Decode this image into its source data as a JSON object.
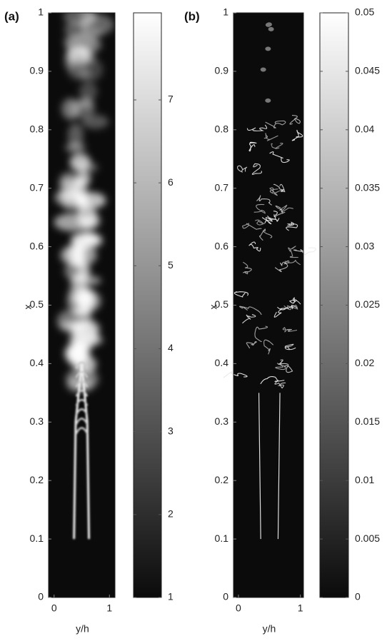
{
  "chart_data": [
    {
      "type": "heatmap",
      "label": "(a)",
      "xlabel": "y/h",
      "ylabel": "x",
      "xlim": [
        -0.1,
        1.1
      ],
      "ylim": [
        0,
        1
      ],
      "xticks": [
        0,
        1
      ],
      "yticks": [
        0,
        0.1,
        0.2,
        0.3,
        0.4,
        0.5,
        0.6,
        0.7,
        0.8,
        0.9,
        1
      ],
      "colormap": "gray",
      "colorbar": {
        "clim": [
          1,
          8.05
        ],
        "ticks": [
          1,
          2,
          3,
          4,
          5,
          6,
          7
        ]
      }
    },
    {
      "type": "heatmap",
      "label": "(b)",
      "xlabel": "y/h",
      "ylabel": "x",
      "xlim": [
        -0.08,
        1.05
      ],
      "ylim": [
        0,
        1
      ],
      "xticks": [
        0,
        1
      ],
      "yticks": [
        0,
        0.1,
        0.2,
        0.3,
        0.4,
        0.5,
        0.6,
        0.7,
        0.8,
        0.9,
        1
      ],
      "colormap": "gray",
      "colorbar": {
        "clim": [
          0,
          0.05
        ],
        "ticks": [
          0,
          0.005,
          0.01,
          0.015,
          0.02,
          0.025,
          0.03,
          0.035,
          0.04,
          0.045,
          0.05
        ]
      }
    }
  ]
}
